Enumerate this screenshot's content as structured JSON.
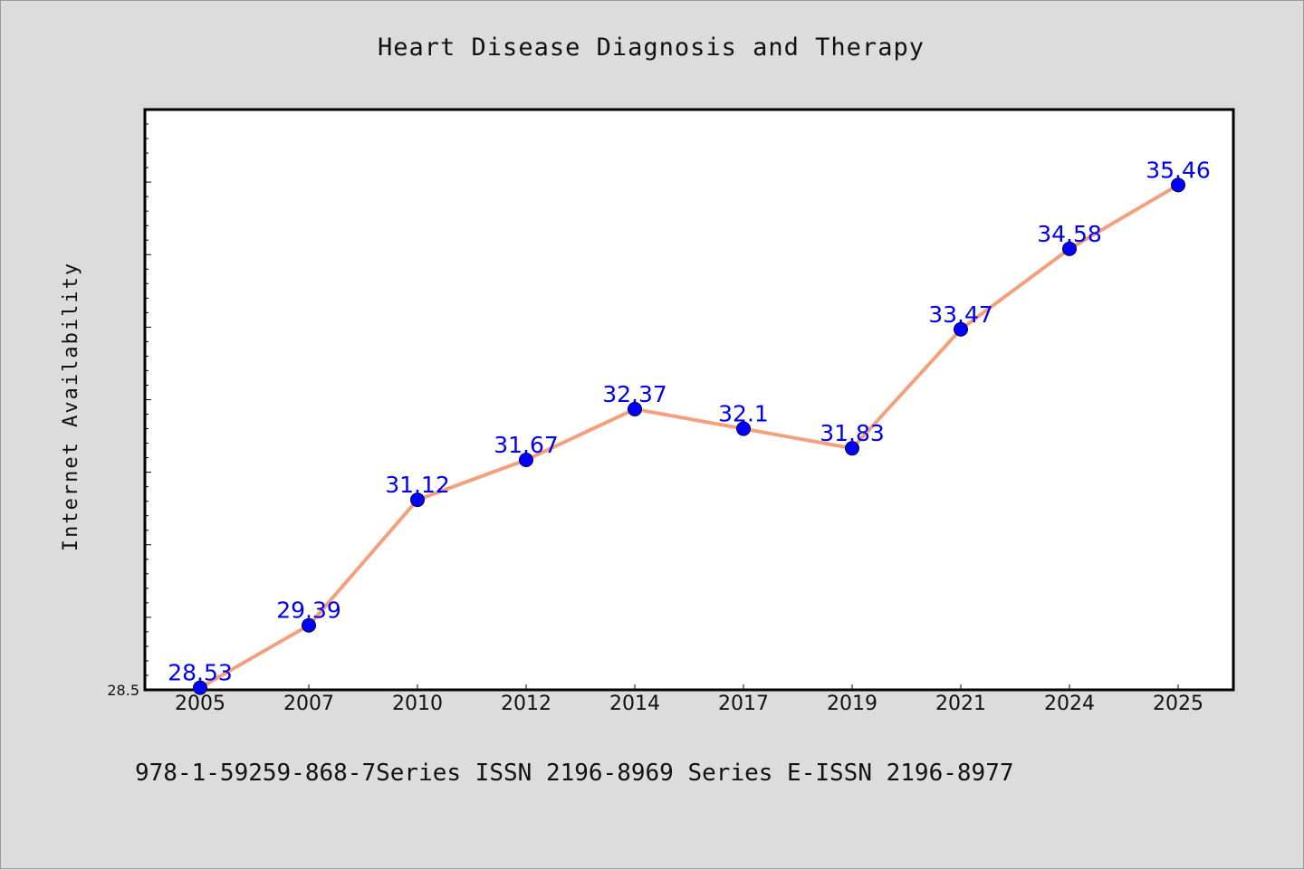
{
  "chart_data": {
    "type": "line",
    "title": "Heart Disease Diagnosis and Therapy",
    "xlabel": "",
    "ylabel": "Internet Availability",
    "categories": [
      "2005",
      "2007",
      "2010",
      "2012",
      "2014",
      "2017",
      "2019",
      "2021",
      "2024",
      "2025"
    ],
    "series": [
      {
        "values": [
          28.53,
          29.39,
          31.12,
          31.67,
          32.37,
          32.1,
          31.83,
          33.47,
          34.58,
          35.46
        ],
        "data_labels": [
          "28.53",
          "29.39",
          "31.12",
          "31.67",
          "32.37",
          "32.1",
          "31.83",
          "33.47",
          "34.58",
          "35.46"
        ]
      }
    ],
    "ylim": [
      28.5,
      36.5
    ],
    "y_ticks_labeled": [
      "28.5"
    ],
    "grid": false,
    "legend": "none",
    "colors": {
      "line": "#f4a07e",
      "marker": "#0000ff",
      "data_label": "#0000ee",
      "plot_bg": "#ffffff",
      "page_bg": "#dcdcdc"
    }
  },
  "footer": "978-1-59259-868-7Series ISSN 2196-8969 Series E-ISSN 2196-8977"
}
